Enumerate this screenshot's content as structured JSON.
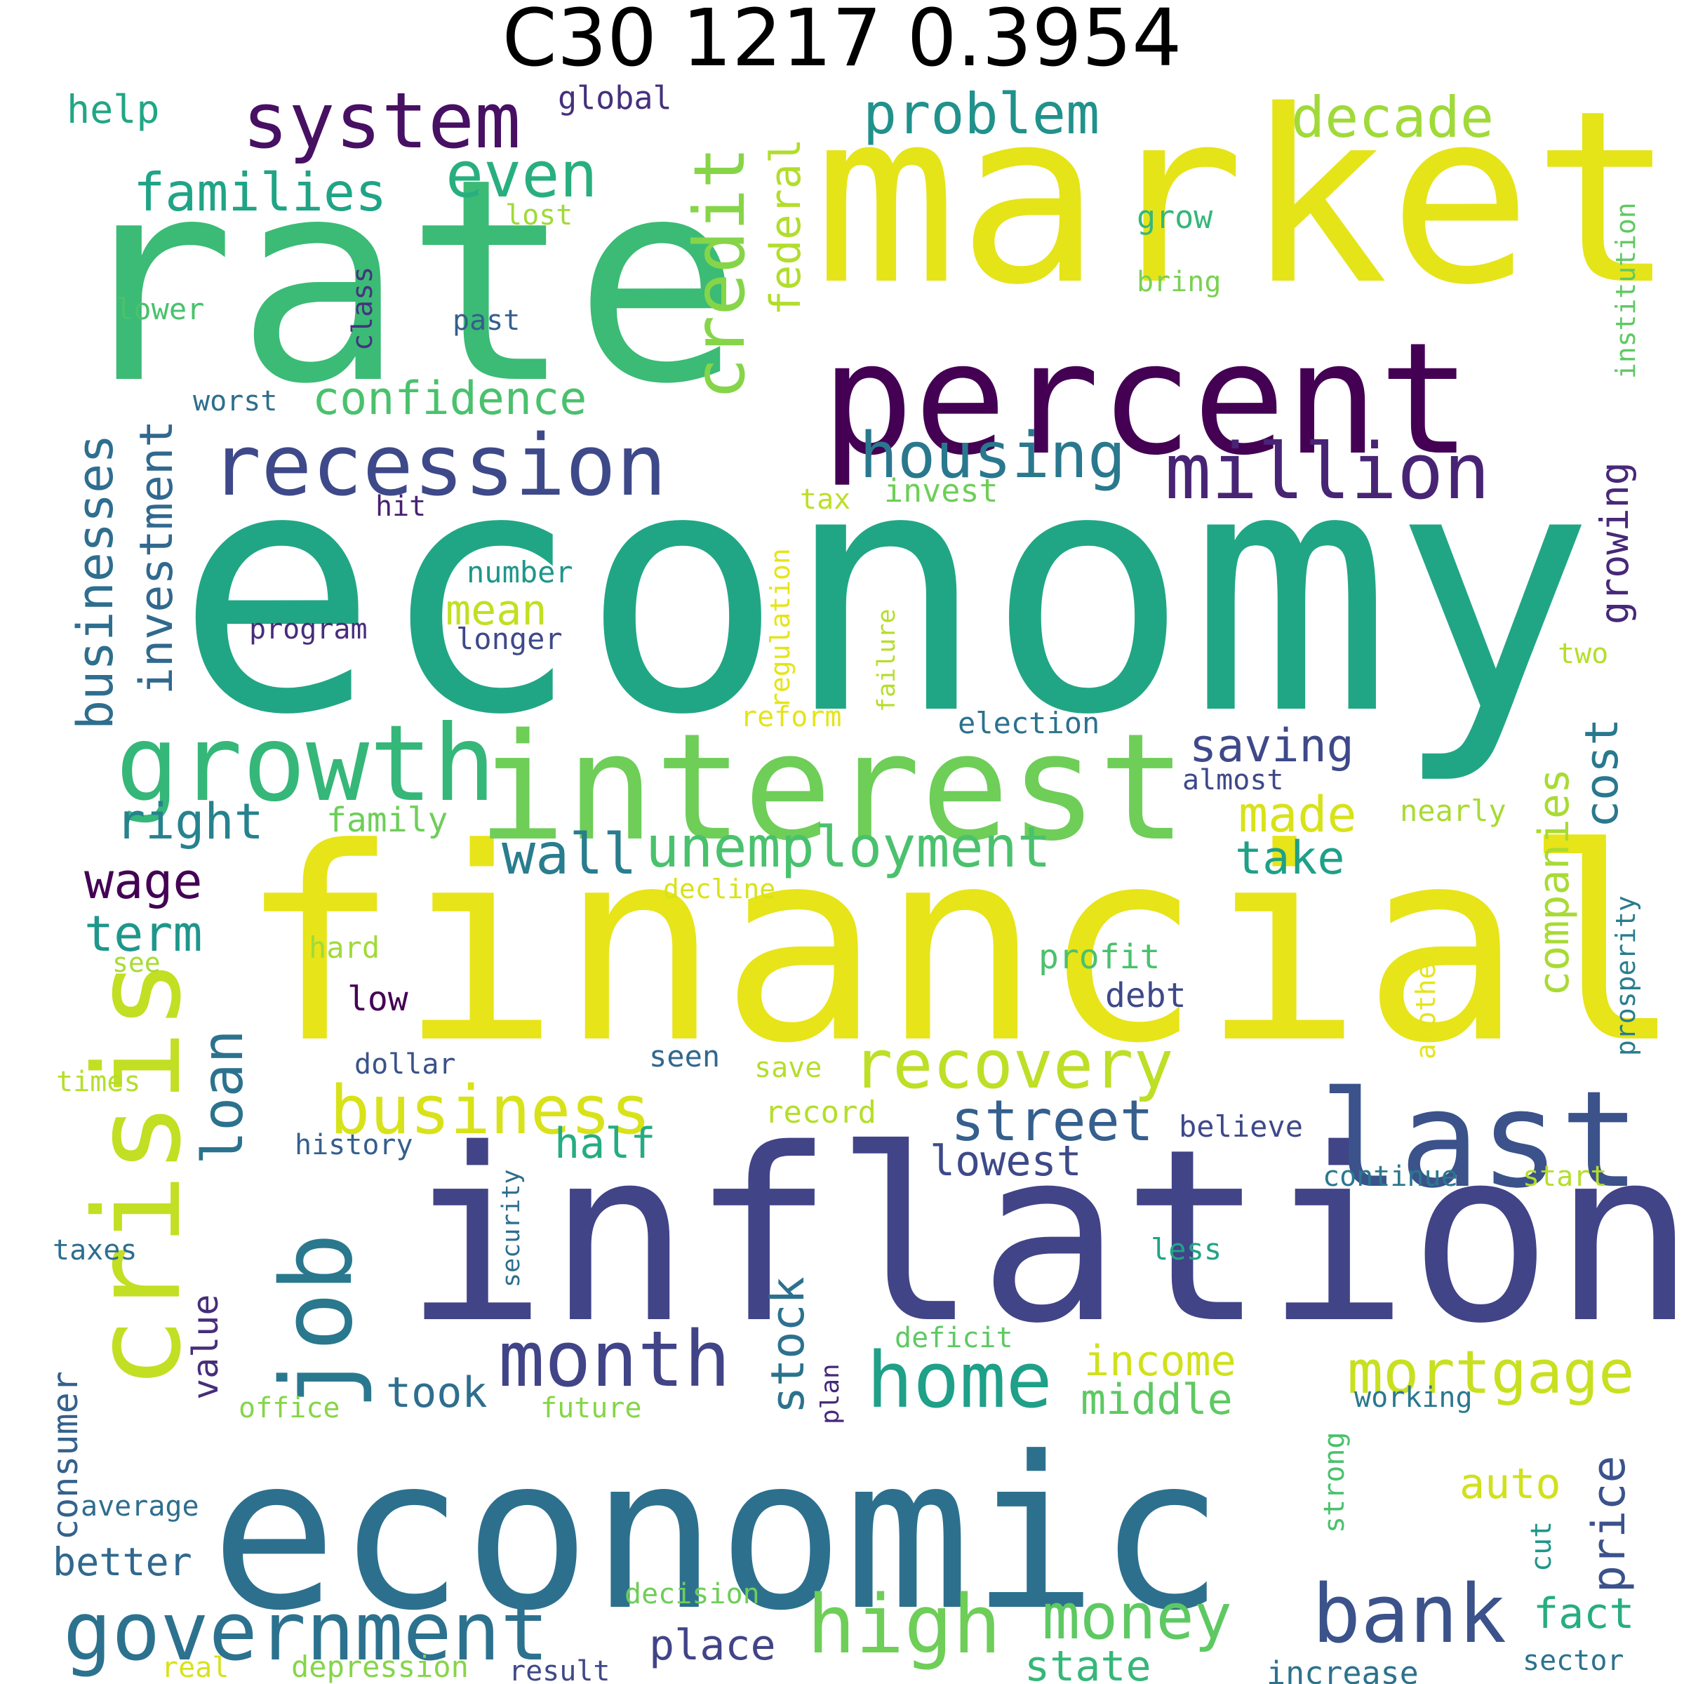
{
  "title": "C30 1217 0.3954",
  "words": [
    {
      "text": "economy",
      "color": "#21a685"
    },
    {
      "text": "rate",
      "color": "#3bbb75"
    },
    {
      "text": "market",
      "color": "#e5e419"
    },
    {
      "text": "financial",
      "color": "#e7e419"
    },
    {
      "text": "inflation",
      "color": "#414487"
    },
    {
      "text": "economic",
      "color": "#2d708e"
    },
    {
      "text": "percent",
      "color": "#440154"
    },
    {
      "text": "interest",
      "color": "#6ece58"
    },
    {
      "text": "crisis",
      "color": "#c2df23"
    },
    {
      "text": "growth",
      "color": "#35b779"
    },
    {
      "text": "recession",
      "color": "#3e4989"
    },
    {
      "text": "job",
      "color": "#2a788e"
    },
    {
      "text": "system",
      "color": "#471063"
    },
    {
      "text": "last",
      "color": "#3b528b"
    },
    {
      "text": "credit",
      "color": "#86d549"
    },
    {
      "text": "million",
      "color": "#482475"
    },
    {
      "text": "government",
      "color": "#2c728e"
    },
    {
      "text": "home",
      "color": "#1fa088"
    },
    {
      "text": "bank",
      "color": "#3b528b"
    },
    {
      "text": "high",
      "color": "#6ece58"
    },
    {
      "text": "month",
      "color": "#414487"
    },
    {
      "text": "recovery",
      "color": "#bddf26"
    },
    {
      "text": "business",
      "color": "#d8e219"
    },
    {
      "text": "housing",
      "color": "#2a788e"
    },
    {
      "text": "even",
      "color": "#29af7f"
    },
    {
      "text": "problem",
      "color": "#21918c"
    },
    {
      "text": "decade",
      "color": "#a0da39"
    },
    {
      "text": "money",
      "color": "#5ec962"
    },
    {
      "text": "mortgage",
      "color": "#c8e020"
    },
    {
      "text": "businesses",
      "color": "#2e6e8e"
    },
    {
      "text": "investment",
      "color": "#31688e"
    },
    {
      "text": "unemployment",
      "color": "#4ac16d"
    },
    {
      "text": "families",
      "color": "#20a486"
    },
    {
      "text": "loan",
      "color": "#2c728e"
    },
    {
      "text": "street",
      "color": "#355f8d"
    },
    {
      "text": "wall",
      "color": "#287d8e"
    },
    {
      "text": "right",
      "color": "#26828e"
    },
    {
      "text": "confidence",
      "color": "#4ac16d"
    },
    {
      "text": "federal",
      "color": "#b2dd2d"
    },
    {
      "text": "saving",
      "color": "#3e4989"
    },
    {
      "text": "made",
      "color": "#d8e219"
    },
    {
      "text": "take",
      "color": "#1fa088"
    },
    {
      "text": "price",
      "color": "#3b528b"
    },
    {
      "text": "cost",
      "color": "#2a788e"
    },
    {
      "text": "companies",
      "color": "#a8db34"
    },
    {
      "text": "stock",
      "color": "#2c728e"
    },
    {
      "text": "income",
      "color": "#d0e11c"
    },
    {
      "text": "middle",
      "color": "#5ec962"
    },
    {
      "text": "growing",
      "color": "#482878"
    },
    {
      "text": "wage",
      "color": "#440154"
    },
    {
      "text": "term",
      "color": "#1f968b"
    },
    {
      "text": "half",
      "color": "#25ac82"
    },
    {
      "text": "lowest",
      "color": "#3e4989"
    },
    {
      "text": "mean",
      "color": "#c2df23"
    },
    {
      "text": "took",
      "color": "#2e6e8e"
    },
    {
      "text": "value",
      "color": "#472d7b"
    },
    {
      "text": "place",
      "color": "#414487"
    },
    {
      "text": "fact",
      "color": "#27ad81"
    },
    {
      "text": "state",
      "color": "#35b779"
    },
    {
      "text": "auto",
      "color": "#d0e11c"
    },
    {
      "text": "consumer",
      "color": "#34618d"
    },
    {
      "text": "better",
      "color": "#31688e"
    },
    {
      "text": "help",
      "color": "#21a685"
    },
    {
      "text": "global",
      "color": "#46307e"
    },
    {
      "text": "lost",
      "color": "#a0da39"
    },
    {
      "text": "grow",
      "color": "#35b779"
    },
    {
      "text": "bring",
      "color": "#7ad151"
    },
    {
      "text": "institution",
      "color": "#5ec962"
    },
    {
      "text": "lower",
      "color": "#4ac16d"
    },
    {
      "text": "class",
      "color": "#46337f"
    },
    {
      "text": "past",
      "color": "#355f8d"
    },
    {
      "text": "worst",
      "color": "#2e6e8e"
    },
    {
      "text": "hit",
      "color": "#482173"
    },
    {
      "text": "tax",
      "color": "#bddf26"
    },
    {
      "text": "invest",
      "color": "#6ece58"
    },
    {
      "text": "number",
      "color": "#1f968b"
    },
    {
      "text": "program",
      "color": "#472d7b"
    },
    {
      "text": "longer",
      "color": "#3e4989"
    },
    {
      "text": "regulation",
      "color": "#e5e419"
    },
    {
      "text": "failure",
      "color": "#b5de2b"
    },
    {
      "text": "election",
      "color": "#2c728e"
    },
    {
      "text": "reform",
      "color": "#e5e419"
    },
    {
      "text": "two",
      "color": "#b5de2b"
    },
    {
      "text": "almost",
      "color": "#3e4989"
    },
    {
      "text": "nearly",
      "color": "#a8db34"
    },
    {
      "text": "family",
      "color": "#6ece58"
    },
    {
      "text": "decline",
      "color": "#d8e219"
    },
    {
      "text": "prosperity",
      "color": "#287d8e"
    },
    {
      "text": "another",
      "color": "#e5e419"
    },
    {
      "text": "see",
      "color": "#a8db34"
    },
    {
      "text": "hard",
      "color": "#a0da39"
    },
    {
      "text": "profit",
      "color": "#4ac16d"
    },
    {
      "text": "debt",
      "color": "#3e4989"
    },
    {
      "text": "low",
      "color": "#440154"
    },
    {
      "text": "seen",
      "color": "#31688e"
    },
    {
      "text": "dollar",
      "color": "#3b528b"
    },
    {
      "text": "save",
      "color": "#b5de2b"
    },
    {
      "text": "times",
      "color": "#b5de2b"
    },
    {
      "text": "record",
      "color": "#b5de2b"
    },
    {
      "text": "believe",
      "color": "#3e4989"
    },
    {
      "text": "history",
      "color": "#355f8d"
    },
    {
      "text": "security",
      "color": "#2e6e8e"
    },
    {
      "text": "continue",
      "color": "#2a788e"
    },
    {
      "text": "start",
      "color": "#b5de2b"
    },
    {
      "text": "less",
      "color": "#20a486"
    },
    {
      "text": "taxes",
      "color": "#2e6e8e"
    },
    {
      "text": "deficit",
      "color": "#5ec962"
    },
    {
      "text": "plan",
      "color": "#482878"
    },
    {
      "text": "working",
      "color": "#2a788e"
    },
    {
      "text": "office",
      "color": "#86d549"
    },
    {
      "text": "future",
      "color": "#86d549"
    },
    {
      "text": "strong",
      "color": "#4ac16d"
    },
    {
      "text": "cut",
      "color": "#1f968b"
    },
    {
      "text": "average",
      "color": "#2e6e8e"
    },
    {
      "text": "decision",
      "color": "#6ece58"
    },
    {
      "text": "real",
      "color": "#d8e219"
    },
    {
      "text": "depression",
      "color": "#86d549"
    },
    {
      "text": "result",
      "color": "#3e4989"
    },
    {
      "text": "increase",
      "color": "#2c728e"
    },
    {
      "text": "sector",
      "color": "#2c728e"
    }
  ]
}
